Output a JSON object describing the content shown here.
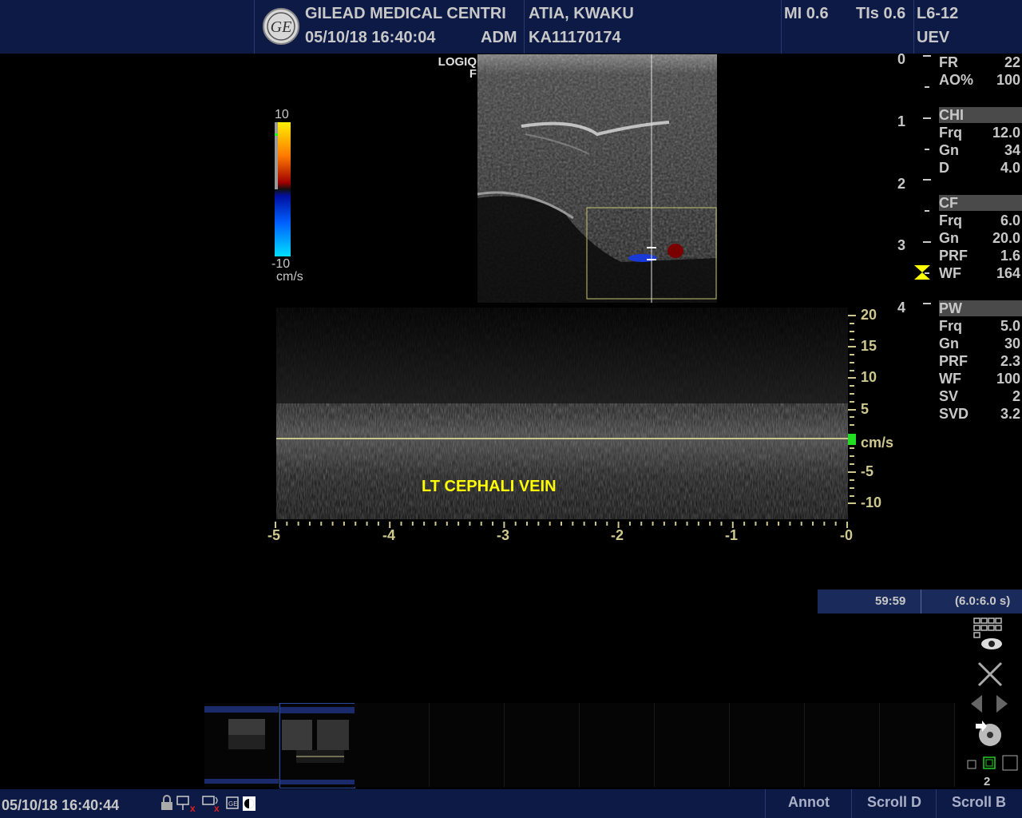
{
  "header": {
    "hospital": "GILEAD MEDICAL CENTRI",
    "datetime": "05/10/18 16:40:04",
    "operator": "ADM",
    "patient_name": "ATIA, KWAKU",
    "patient_id": "KA11170174",
    "mi": "MI 0.6",
    "tis": "TIs 0.6",
    "probe": "L6-12",
    "preset": "UEV",
    "logo_text": "GE"
  },
  "image_label": {
    "line1": "LOGIQ",
    "line2": "F"
  },
  "color_bar": {
    "max": "10",
    "min": "-10",
    "unit": "cm/s"
  },
  "depth_scale": [
    "0",
    "1",
    "2",
    "3",
    "4"
  ],
  "params": {
    "general": [
      {
        "k": "FR",
        "v": "22"
      },
      {
        "k": "AO%",
        "v": "100"
      }
    ],
    "chi_title": "CHI",
    "chi": [
      {
        "k": "Frq",
        "v": "12.0"
      },
      {
        "k": "Gn",
        "v": "34"
      },
      {
        "k": "D",
        "v": "4.0"
      }
    ],
    "cf_title": "CF",
    "cf": [
      {
        "k": "Frq",
        "v": "6.0"
      },
      {
        "k": "Gn",
        "v": "20.0"
      },
      {
        "k": "PRF",
        "v": "1.6"
      },
      {
        "k": "WF",
        "v": "164"
      }
    ],
    "pw_title": "PW",
    "pw": [
      {
        "k": "Frq",
        "v": "5.0"
      },
      {
        "k": "Gn",
        "v": "30"
      },
      {
        "k": "PRF",
        "v": "2.3"
      },
      {
        "k": "WF",
        "v": "100"
      },
      {
        "k": "SV",
        "v": "2"
      },
      {
        "k": "SVD",
        "v": "3.2"
      }
    ]
  },
  "doppler": {
    "velocity_labels": [
      "20",
      "15",
      "10",
      "5",
      "cm/s",
      "-5",
      "-10"
    ],
    "time_labels": [
      "-5",
      "-4",
      "-3",
      "-2",
      "-1",
      "-0"
    ],
    "annotation": "LT CEPHALI VEIN"
  },
  "cine": {
    "time": "59:59",
    "range": "(6.0:6.0 s)"
  },
  "page_number": "2",
  "footer": {
    "datetime": "05/10/18 16:40:44",
    "annot": "Annot",
    "scroll_d": "Scroll D",
    "scroll_b": "Scroll B"
  },
  "colors": {
    "header_bg": "#0c1a45",
    "annotation": "#ffff00",
    "scale": "#cfc88e",
    "baseline": "#c8c48a"
  }
}
